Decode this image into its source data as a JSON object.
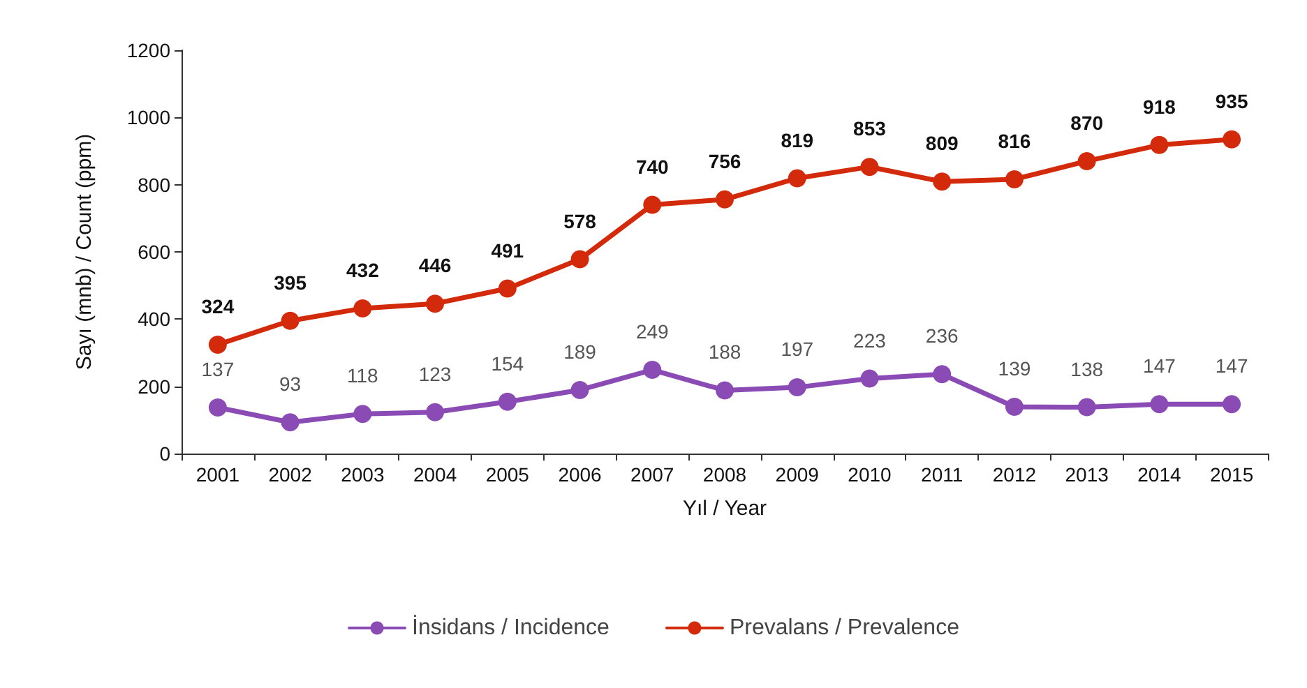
{
  "chart_data": {
    "type": "line",
    "xlabel": "Yıl / Year",
    "ylabel": "Sayı (mnb) / Count (ppm)",
    "categories": [
      "2001",
      "2002",
      "2003",
      "2004",
      "2005",
      "2006",
      "2007",
      "2008",
      "2009",
      "2010",
      "2011",
      "2012",
      "2013",
      "2014",
      "2015"
    ],
    "series": [
      {
        "name": "İnsidans / Incidence",
        "color": "#8b4bb5",
        "values": [
          137,
          93,
          118,
          123,
          154,
          189,
          249,
          188,
          197,
          223,
          236,
          139,
          138,
          147,
          147
        ]
      },
      {
        "name": "Prevalans / Prevalence",
        "color": "#d42a0c",
        "values": [
          324,
          395,
          432,
          446,
          491,
          578,
          740,
          756,
          819,
          853,
          809,
          816,
          870,
          918,
          935
        ]
      }
    ],
    "ylim": [
      0,
      1200
    ],
    "yticks": [
      0,
      200,
      400,
      600,
      800,
      1000,
      1200
    ],
    "data_labels": true,
    "grid": false,
    "legend": "bottom",
    "marker": "circle",
    "line_style": "solid"
  }
}
